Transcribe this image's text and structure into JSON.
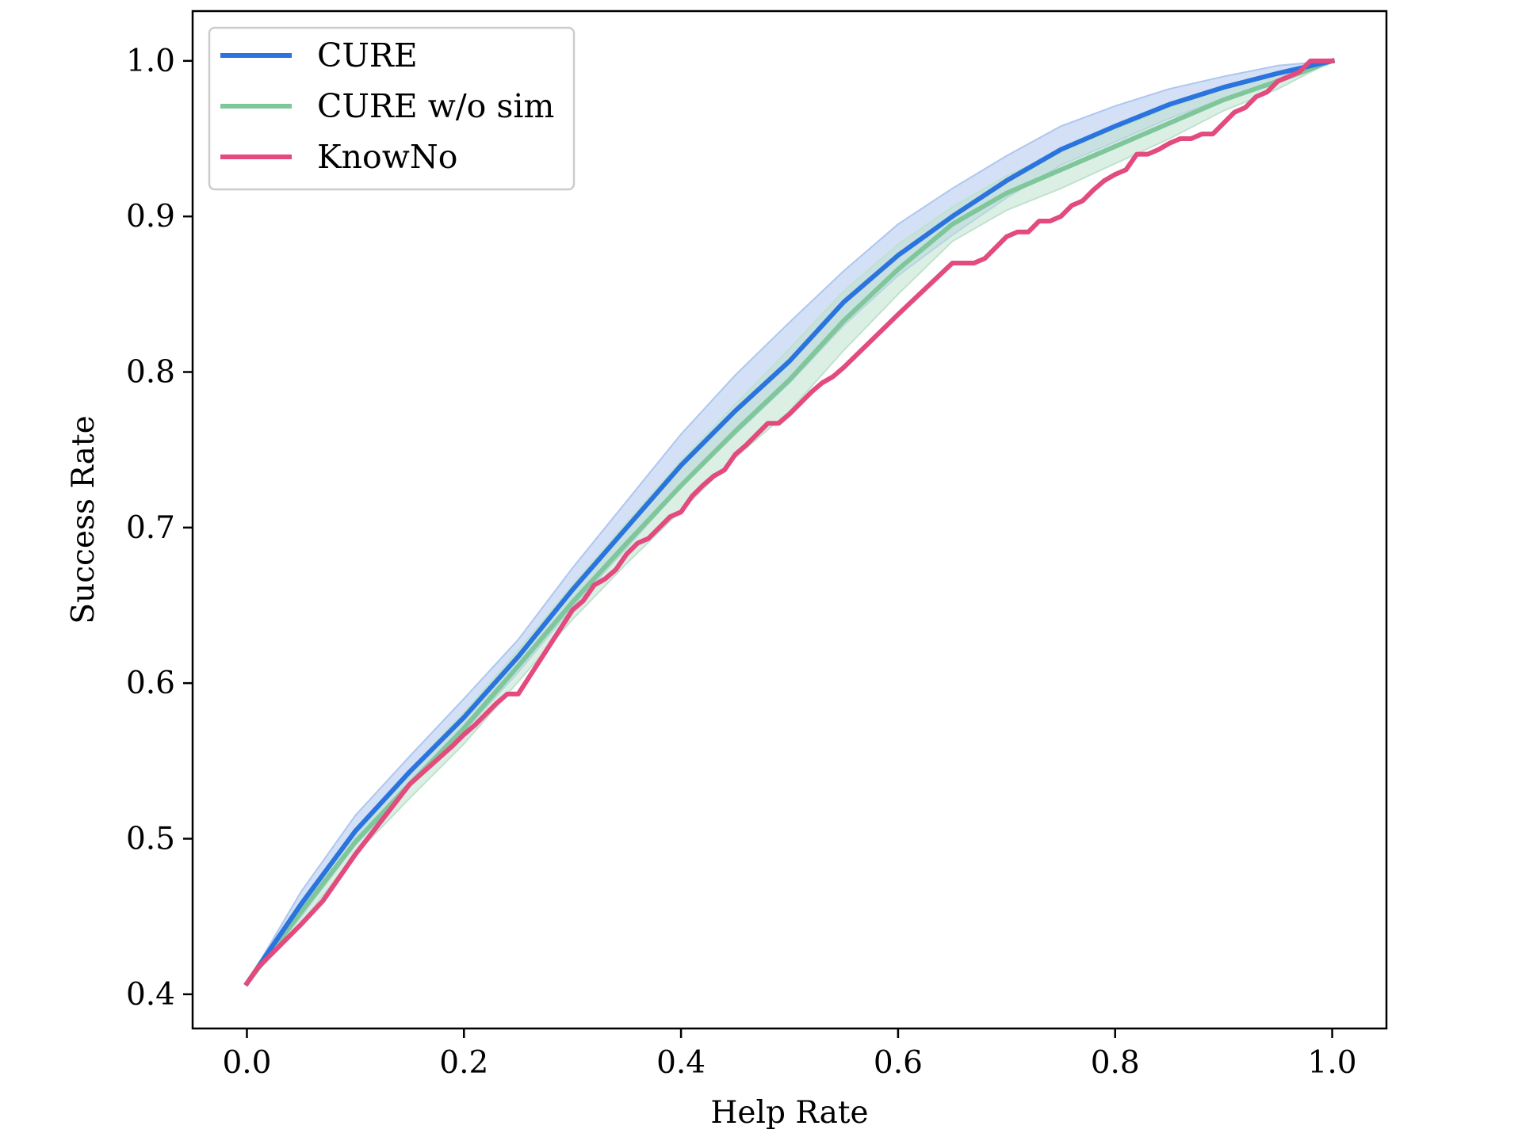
{
  "chart_data": {
    "type": "line",
    "title": "",
    "xlabel": "Help Rate",
    "ylabel": "Success Rate",
    "xlim": [
      -0.05,
      1.05
    ],
    "ylim": [
      0.378,
      1.032
    ],
    "xticks": [
      0.0,
      0.2,
      0.4,
      0.6,
      0.8,
      1.0
    ],
    "xtick_labels": [
      "0.0",
      "0.2",
      "0.4",
      "0.6",
      "0.8",
      "1.0"
    ],
    "yticks": [
      0.4,
      0.5,
      0.6,
      0.7,
      0.8,
      0.9,
      1.0
    ],
    "ytick_labels": [
      "0.4",
      "0.5",
      "0.6",
      "0.7",
      "0.8",
      "0.9",
      "1.0"
    ],
    "grid": false,
    "legend_position": "top-left",
    "series": [
      {
        "name": "CURE",
        "color": "#2b74de",
        "band_color": "#aec7ef",
        "x": [
          0.0,
          0.05,
          0.1,
          0.15,
          0.2,
          0.25,
          0.3,
          0.35,
          0.4,
          0.45,
          0.5,
          0.55,
          0.6,
          0.65,
          0.7,
          0.75,
          0.8,
          0.85,
          0.9,
          0.95,
          1.0
        ],
        "y": [
          0.407,
          0.458,
          0.505,
          0.543,
          0.578,
          0.617,
          0.66,
          0.7,
          0.74,
          0.775,
          0.807,
          0.845,
          0.875,
          0.9,
          0.923,
          0.943,
          0.958,
          0.972,
          0.983,
          0.992,
          1.0
        ],
        "band_upper": [
          0.407,
          0.466,
          0.515,
          0.553,
          0.59,
          0.628,
          0.674,
          0.717,
          0.76,
          0.798,
          0.832,
          0.865,
          0.895,
          0.918,
          0.939,
          0.958,
          0.971,
          0.982,
          0.99,
          0.997,
          1.0
        ],
        "band_lower": [
          0.407,
          0.45,
          0.496,
          0.534,
          0.569,
          0.607,
          0.649,
          0.687,
          0.726,
          0.76,
          0.793,
          0.83,
          0.862,
          0.888,
          0.912,
          0.933,
          0.948,
          0.963,
          0.976,
          0.987,
          1.0
        ]
      },
      {
        "name": "CURE w/o sim",
        "color": "#7fc79b",
        "band_color": "#bfe2cd",
        "x": [
          0.0,
          0.05,
          0.1,
          0.15,
          0.2,
          0.25,
          0.3,
          0.35,
          0.4,
          0.45,
          0.5,
          0.55,
          0.6,
          0.65,
          0.7,
          0.75,
          0.8,
          0.85,
          0.9,
          0.95,
          1.0
        ],
        "y": [
          0.407,
          0.453,
          0.498,
          0.535,
          0.571,
          0.611,
          0.652,
          0.69,
          0.727,
          0.762,
          0.795,
          0.833,
          0.866,
          0.895,
          0.915,
          0.93,
          0.945,
          0.96,
          0.975,
          0.987,
          1.0
        ],
        "band_upper": [
          0.407,
          0.46,
          0.506,
          0.544,
          0.581,
          0.621,
          0.663,
          0.703,
          0.743,
          0.779,
          0.815,
          0.852,
          0.882,
          0.906,
          0.926,
          0.942,
          0.956,
          0.97,
          0.982,
          0.992,
          1.0
        ],
        "band_lower": [
          0.407,
          0.446,
          0.49,
          0.526,
          0.561,
          0.601,
          0.641,
          0.677,
          0.711,
          0.745,
          0.775,
          0.814,
          0.85,
          0.884,
          0.904,
          0.918,
          0.934,
          0.95,
          0.968,
          0.982,
          1.0
        ]
      },
      {
        "name": "KnowNo",
        "color": "#e34a7e",
        "x": [
          0.0,
          0.01,
          0.05,
          0.07,
          0.1,
          0.15,
          0.19,
          0.2,
          0.21,
          0.23,
          0.24,
          0.25,
          0.3,
          0.31,
          0.32,
          0.33,
          0.34,
          0.35,
          0.36,
          0.37,
          0.38,
          0.39,
          0.4,
          0.41,
          0.42,
          0.43,
          0.44,
          0.45,
          0.46,
          0.47,
          0.48,
          0.49,
          0.5,
          0.51,
          0.52,
          0.53,
          0.54,
          0.55,
          0.6,
          0.65,
          0.66,
          0.67,
          0.68,
          0.69,
          0.7,
          0.71,
          0.72,
          0.73,
          0.74,
          0.75,
          0.76,
          0.77,
          0.78,
          0.79,
          0.8,
          0.81,
          0.82,
          0.83,
          0.84,
          0.85,
          0.86,
          0.87,
          0.88,
          0.89,
          0.9,
          0.91,
          0.92,
          0.93,
          0.94,
          0.95,
          0.96,
          0.97,
          0.98,
          0.99,
          1.0
        ],
        "y": [
          0.407,
          0.417,
          0.445,
          0.46,
          0.49,
          0.535,
          0.56,
          0.567,
          0.573,
          0.587,
          0.593,
          0.593,
          0.647,
          0.653,
          0.663,
          0.667,
          0.673,
          0.683,
          0.69,
          0.693,
          0.7,
          0.707,
          0.71,
          0.72,
          0.727,
          0.733,
          0.737,
          0.747,
          0.753,
          0.76,
          0.767,
          0.767,
          0.773,
          0.78,
          0.787,
          0.793,
          0.797,
          0.803,
          0.837,
          0.87,
          0.87,
          0.87,
          0.873,
          0.88,
          0.887,
          0.89,
          0.89,
          0.897,
          0.897,
          0.9,
          0.907,
          0.91,
          0.917,
          0.923,
          0.927,
          0.93,
          0.94,
          0.94,
          0.943,
          0.947,
          0.95,
          0.95,
          0.953,
          0.953,
          0.96,
          0.967,
          0.97,
          0.977,
          0.98,
          0.987,
          0.99,
          0.993,
          1.0,
          1.0,
          1.0
        ]
      }
    ]
  }
}
